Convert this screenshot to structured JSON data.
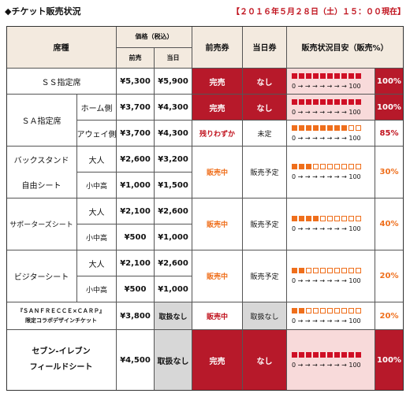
{
  "header": {
    "title": "◆チケット販売状況",
    "date": "【２０１６年５月２８日（土）１５：００現在】"
  },
  "columns": {
    "seat_type": "席種",
    "price_group": "価格（税込）",
    "advance": "前売",
    "same_day": "当日",
    "advance_ticket": "前売券",
    "same_day_ticket": "当日券",
    "status_gauge": "販売状況目安（販売%）"
  },
  "scale_text": "0 → → → → → → → 100",
  "colors": {
    "sold_out": "#b7192a",
    "gauge_full": "#cf0f25",
    "gauge_partial": "#ef6f1c"
  },
  "rows": {
    "ss": {
      "name": "ＳＳ指定席",
      "advance_price": "¥5,300",
      "same_day_price": "¥5,900",
      "advance_status": "完売",
      "same_day_status": "なし",
      "filled": 10,
      "percent": "100%"
    },
    "sa": {
      "name": "ＳＡ指定席",
      "home": {
        "side": "ホーム側",
        "advance_price": "¥3,700",
        "same_day_price": "¥4,300",
        "advance_status": "完売",
        "same_day_status": "なし",
        "filled": 10,
        "percent": "100%"
      },
      "away": {
        "side": "アウェイ側",
        "advance_price": "¥3,700",
        "same_day_price": "¥4,300",
        "advance_status": "残りわずか",
        "same_day_status": "未定",
        "filled": 8,
        "percent": "85%"
      }
    },
    "back": {
      "name1": "バックスタンド",
      "name2": "自由シート",
      "adult": {
        "label": "大人",
        "advance_price": "¥2,600",
        "same_day_price": "¥3,200"
      },
      "child": {
        "label": "小中高",
        "advance_price": "¥1,000",
        "same_day_price": "¥1,500"
      },
      "advance_status": "販売中",
      "same_day_status": "販売予定",
      "filled": 3,
      "percent": "30%"
    },
    "supporters": {
      "name": "サポーターズシート",
      "adult": {
        "label": "大人",
        "advance_price": "¥2,100",
        "same_day_price": "¥2,600"
      },
      "child": {
        "label": "小中高",
        "advance_price": "¥500",
        "same_day_price": "¥1,000"
      },
      "advance_status": "販売中",
      "same_day_status": "販売予定",
      "filled": 4,
      "percent": "40%"
    },
    "visitor": {
      "name": "ビジターシート",
      "adult": {
        "label": "大人",
        "advance_price": "¥2,100",
        "same_day_price": "¥2,600"
      },
      "child": {
        "label": "小中高",
        "advance_price": "¥500",
        "same_day_price": "¥1,000"
      },
      "advance_status": "販売中",
      "same_day_status": "販売予定",
      "filled": 2,
      "percent": "20%"
    },
    "collab": {
      "name1": "『ＳＡＮＦＲＥＣＣＥ×ＣＡＲＰ』",
      "name2": "限定コラボデザインチケット",
      "advance_price": "¥3,800",
      "same_day_price": "取扱なし",
      "advance_status": "販売中",
      "same_day_status": "取扱なし",
      "filled": 2,
      "percent": "20%"
    },
    "seven": {
      "name1": "セブン-イレブン",
      "name2": "フィールドシート",
      "price": "¥4,500",
      "same_day_price": "取扱なし",
      "advance_status": "完売",
      "same_day_status": "なし",
      "filled": 10,
      "percent": "100%"
    }
  }
}
